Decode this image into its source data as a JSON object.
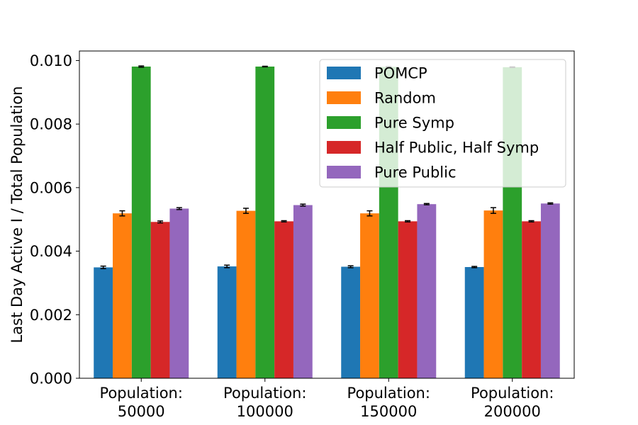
{
  "chart_data": {
    "type": "bar",
    "title": "",
    "xlabel": "",
    "ylabel": "Last Day Active I / Total Population",
    "ylim": [
      0,
      0.0103
    ],
    "yticks": [
      "0.000",
      "0.002",
      "0.004",
      "0.006",
      "0.008",
      "0.010"
    ],
    "categories": [
      [
        "Population:",
        "50000"
      ],
      [
        "Population:",
        "100000"
      ],
      [
        "Population:",
        "150000"
      ],
      [
        "Population:",
        "200000"
      ]
    ],
    "legend_position": "top-right",
    "grid": false,
    "series": [
      {
        "name": "POMCP",
        "color": "#1f77b4",
        "values": [
          0.00349,
          0.00352,
          0.00351,
          0.0035
        ],
        "errors": [
          4e-05,
          4e-05,
          3e-05,
          2e-05
        ]
      },
      {
        "name": "Random",
        "color": "#ff7f0e",
        "values": [
          0.00519,
          0.00527,
          0.00519,
          0.00528
        ],
        "errors": [
          8e-05,
          8e-05,
          8e-05,
          9e-05
        ]
      },
      {
        "name": "Pure Symp",
        "color": "#2ca02c",
        "values": [
          0.00981,
          0.00981,
          0.0098,
          0.00979
        ],
        "errors": [
          2e-05,
          1e-05,
          1e-05,
          1e-05
        ]
      },
      {
        "name": "Half Public, Half Symp",
        "color": "#d62728",
        "values": [
          0.00492,
          0.00494,
          0.00494,
          0.00494
        ],
        "errors": [
          3e-05,
          2e-05,
          2e-05,
          2e-05
        ]
      },
      {
        "name": "Pure Public",
        "color": "#9467bd",
        "values": [
          0.00534,
          0.00545,
          0.00548,
          0.0055
        ],
        "errors": [
          3e-05,
          3e-05,
          2e-05,
          2e-05
        ]
      }
    ]
  }
}
